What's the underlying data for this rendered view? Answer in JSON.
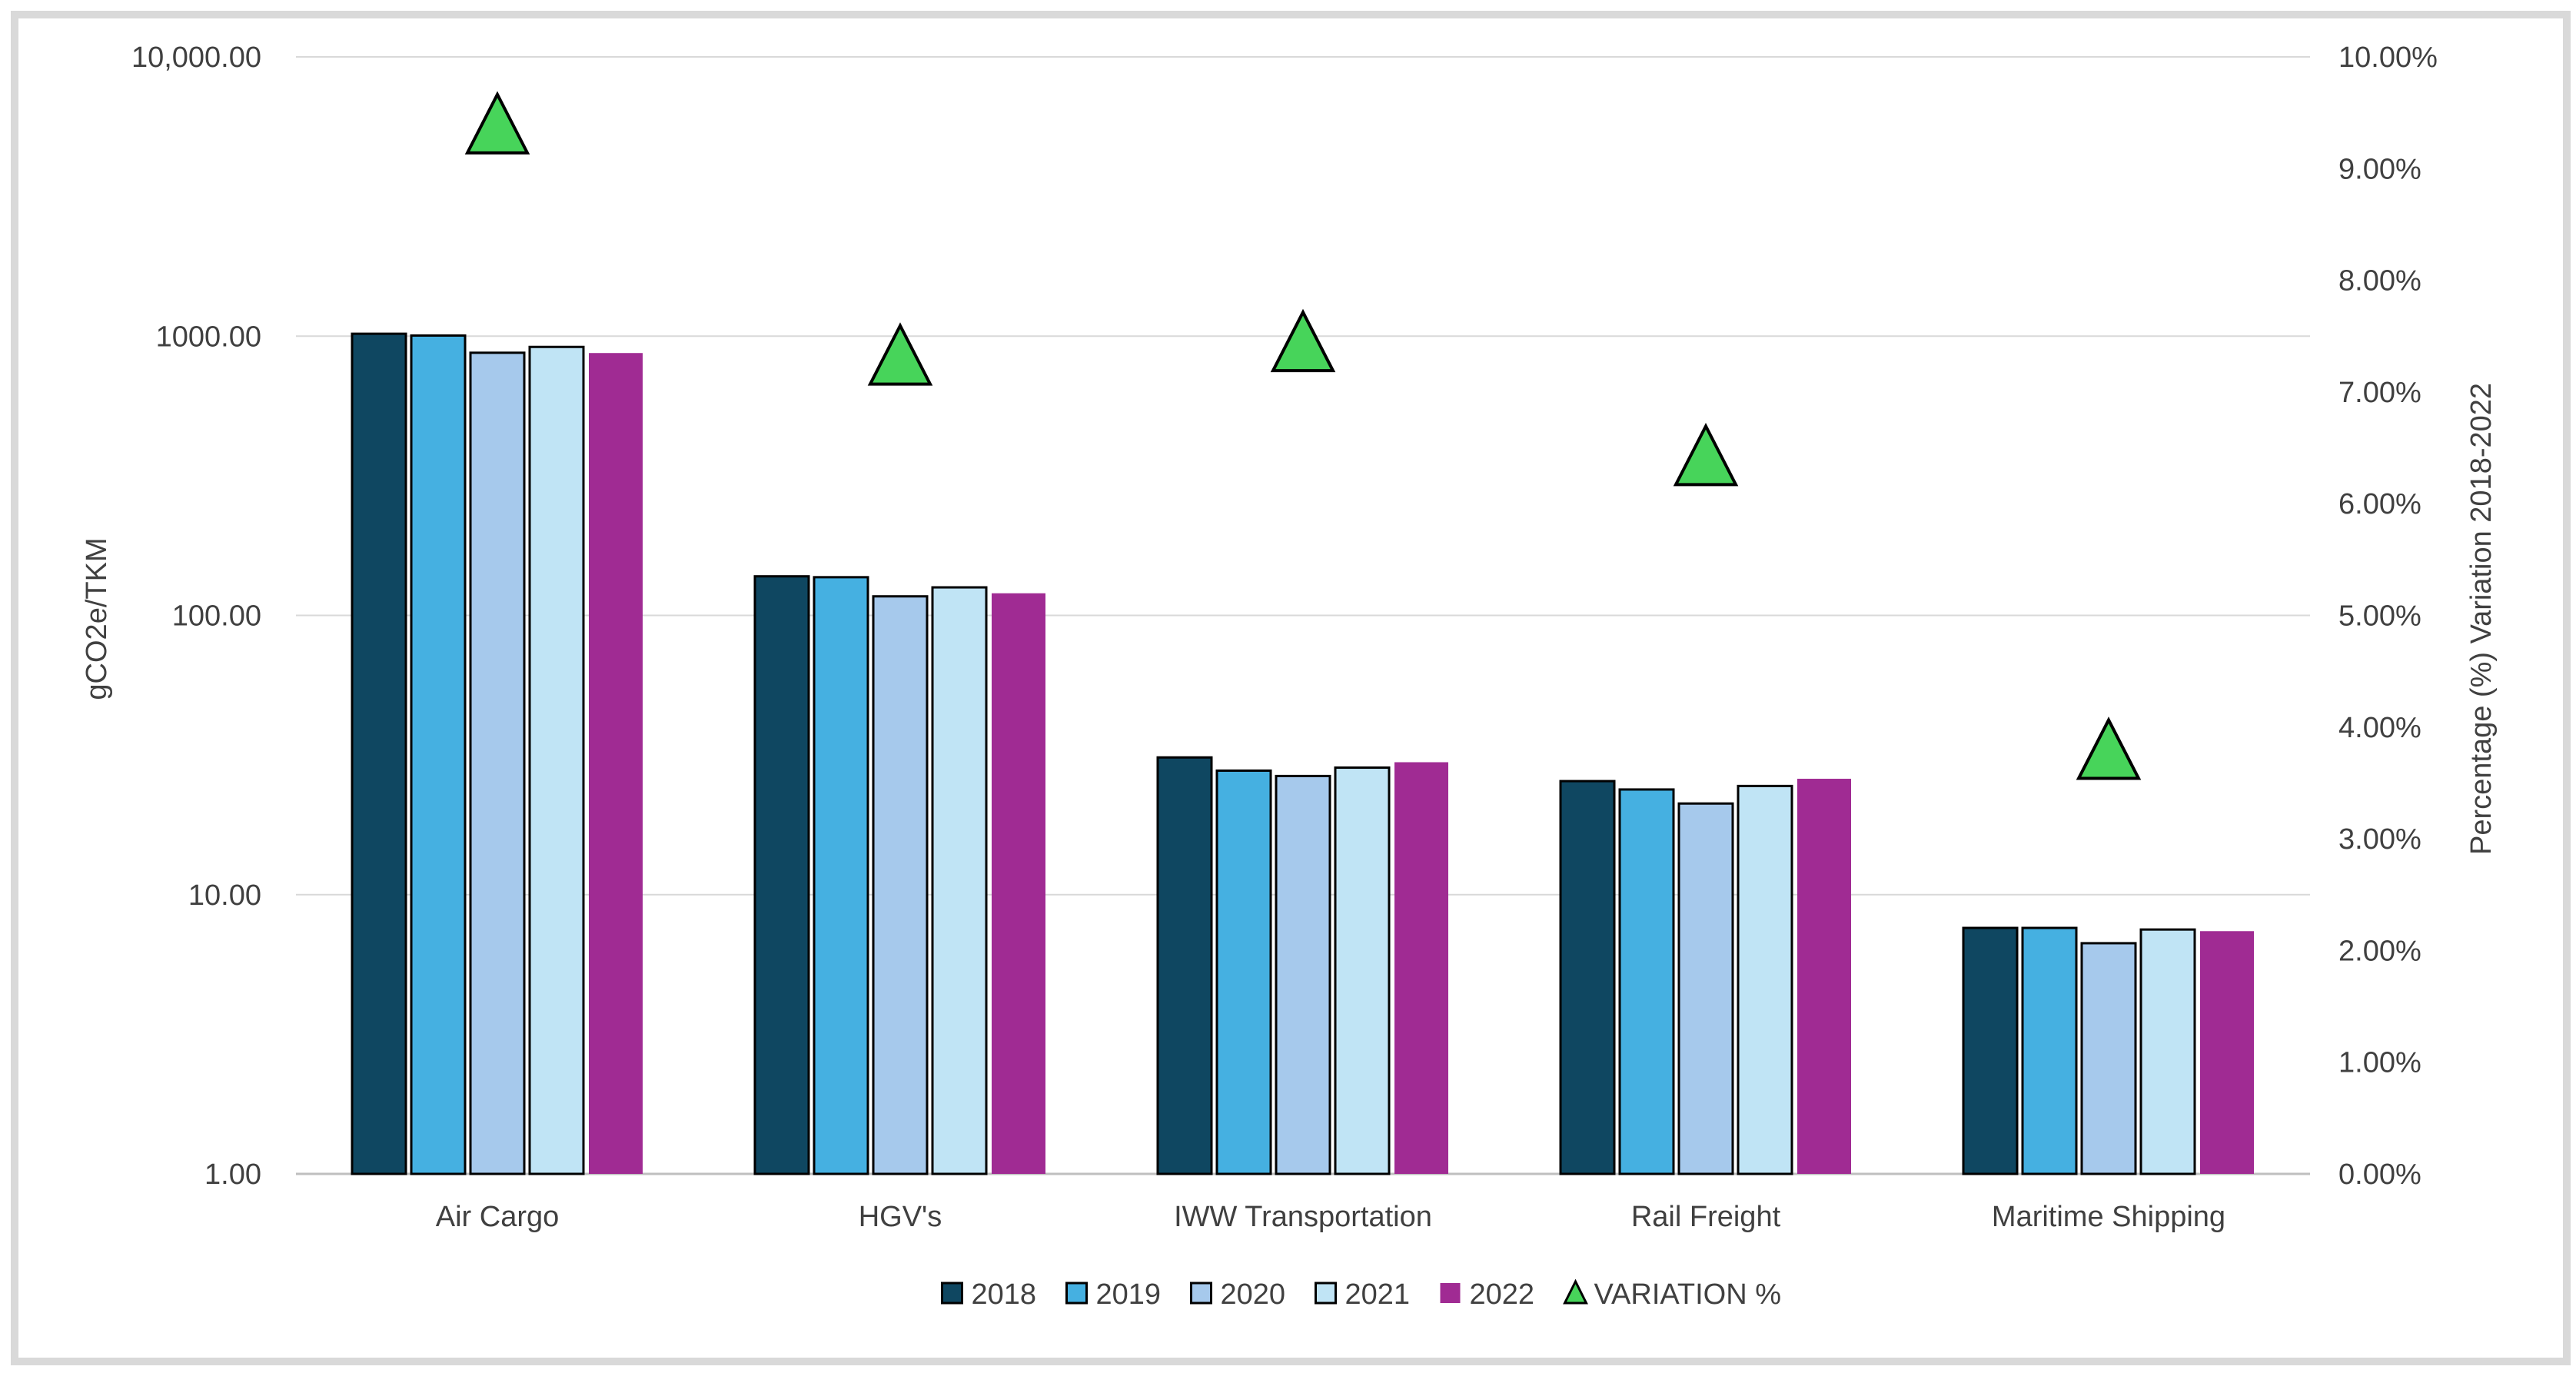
{
  "chart_data": {
    "type": "bar",
    "categories": [
      "Air Cargo",
      "HGV's",
      "IWW Transportation",
      "Rail Freight",
      "Maritime Shipping"
    ],
    "series": [
      {
        "name": "2018",
        "color": "#0f4761",
        "values": [
          1020,
          138,
          31,
          25.5,
          7.6
        ]
      },
      {
        "name": "2019",
        "color": "#45b0e1",
        "values": [
          1005,
          137,
          27.8,
          23.8,
          7.6
        ]
      },
      {
        "name": "2020",
        "color": "#a6c9ec",
        "values": [
          872,
          117,
          26.6,
          21.2,
          6.7
        ]
      },
      {
        "name": "2021",
        "color": "#c0e4f5",
        "values": [
          915,
          126,
          28.5,
          24.5,
          7.5
        ]
      },
      {
        "name": "2022",
        "color": "#a02b93",
        "values": [
          870,
          120,
          29.8,
          26.0,
          7.4
        ]
      }
    ],
    "variation": {
      "name": "VARIATION %",
      "color": "#47d45a",
      "values": [
        0.0935,
        0.0728,
        0.074,
        0.0638,
        0.0375
      ]
    },
    "y_left": {
      "label": "gCO2e/TKM",
      "scale": "log",
      "ylim": [
        1,
        10000
      ],
      "ticks": [
        1,
        10,
        100,
        1000,
        10000
      ],
      "tick_labels": [
        "1.00",
        "10.00",
        "100.00",
        "1000.00",
        "10,000.00"
      ]
    },
    "y_right": {
      "label": "Percentage (%) Variation 2018-2022",
      "ylim": [
        0,
        0.1
      ],
      "ticks": [
        0,
        0.01,
        0.02,
        0.03,
        0.04,
        0.05,
        0.06,
        0.07,
        0.08,
        0.09,
        0.1
      ],
      "tick_labels": [
        "0.00%",
        "1.00%",
        "2.00%",
        "3.00%",
        "4.00%",
        "5.00%",
        "6.00%",
        "7.00%",
        "8.00%",
        "9.00%",
        "10.00%"
      ]
    },
    "grid": true,
    "legend_position": "bottom"
  }
}
